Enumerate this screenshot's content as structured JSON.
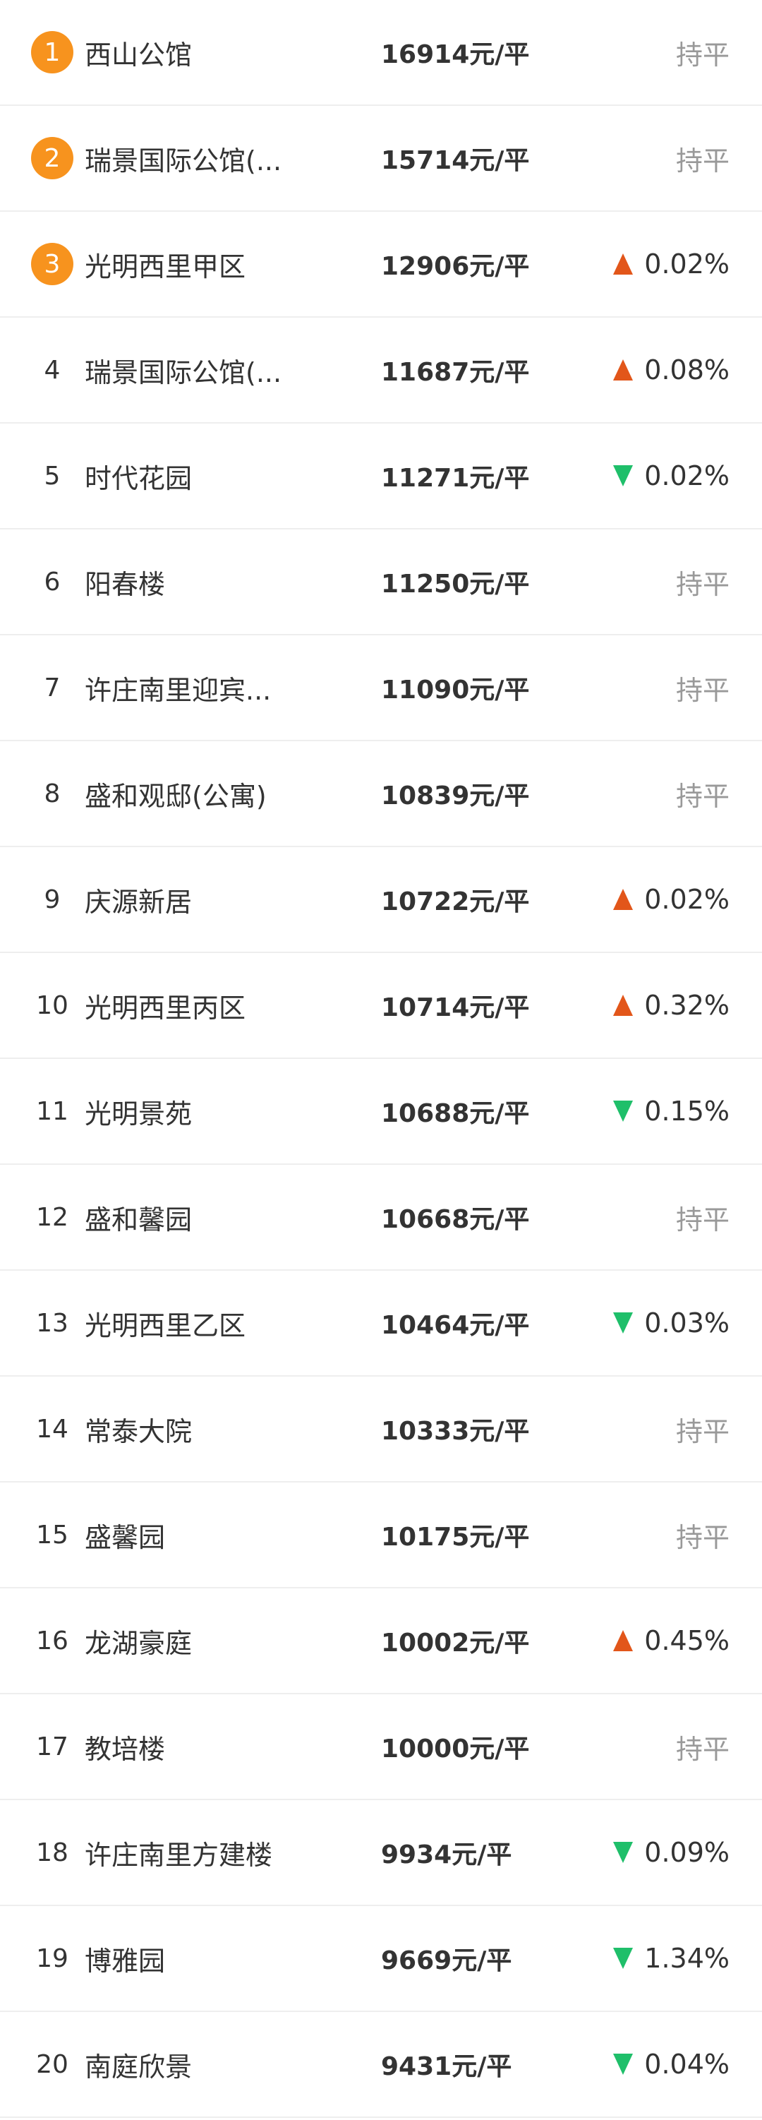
{
  "colors": {
    "rank_badge": "#f7931e",
    "up": "#e2561a",
    "down": "#1fbf6a",
    "flat": "#999999"
  },
  "items": [
    {
      "rank": "1",
      "name": "西山公馆",
      "price": "16914元/平",
      "trend": "flat",
      "change": "持平"
    },
    {
      "rank": "2",
      "name": "瑞景国际公馆(...",
      "price": "15714元/平",
      "trend": "flat",
      "change": "持平"
    },
    {
      "rank": "3",
      "name": "光明西里甲区",
      "price": "12906元/平",
      "trend": "up",
      "change": "0.02%"
    },
    {
      "rank": "4",
      "name": "瑞景国际公馆(...",
      "price": "11687元/平",
      "trend": "up",
      "change": "0.08%"
    },
    {
      "rank": "5",
      "name": "时代花园",
      "price": "11271元/平",
      "trend": "down",
      "change": "0.02%"
    },
    {
      "rank": "6",
      "name": "阳春楼",
      "price": "11250元/平",
      "trend": "flat",
      "change": "持平"
    },
    {
      "rank": "7",
      "name": "许庄南里迎宾...",
      "price": "11090元/平",
      "trend": "flat",
      "change": "持平"
    },
    {
      "rank": "8",
      "name": "盛和观邸(公寓)",
      "price": "10839元/平",
      "trend": "flat",
      "change": "持平"
    },
    {
      "rank": "9",
      "name": "庆源新居",
      "price": "10722元/平",
      "trend": "up",
      "change": "0.02%"
    },
    {
      "rank": "10",
      "name": "光明西里丙区",
      "price": "10714元/平",
      "trend": "up",
      "change": "0.32%"
    },
    {
      "rank": "11",
      "name": "光明景苑",
      "price": "10688元/平",
      "trend": "down",
      "change": "0.15%"
    },
    {
      "rank": "12",
      "name": "盛和馨园",
      "price": "10668元/平",
      "trend": "flat",
      "change": "持平"
    },
    {
      "rank": "13",
      "name": "光明西里乙区",
      "price": "10464元/平",
      "trend": "down",
      "change": "0.03%"
    },
    {
      "rank": "14",
      "name": "常泰大院",
      "price": "10333元/平",
      "trend": "flat",
      "change": "持平"
    },
    {
      "rank": "15",
      "name": "盛馨园",
      "price": "10175元/平",
      "trend": "flat",
      "change": "持平"
    },
    {
      "rank": "16",
      "name": "龙湖豪庭",
      "price": "10002元/平",
      "trend": "up",
      "change": "0.45%"
    },
    {
      "rank": "17",
      "name": "教培楼",
      "price": "10000元/平",
      "trend": "flat",
      "change": "持平"
    },
    {
      "rank": "18",
      "name": "许庄南里方建楼",
      "price": "9934元/平",
      "trend": "down",
      "change": "0.09%"
    },
    {
      "rank": "19",
      "name": "博雅园",
      "price": "9669元/平",
      "trend": "down",
      "change": "1.34%"
    },
    {
      "rank": "20",
      "name": "南庭欣景",
      "price": "9431元/平",
      "trend": "down",
      "change": "0.04%"
    }
  ]
}
